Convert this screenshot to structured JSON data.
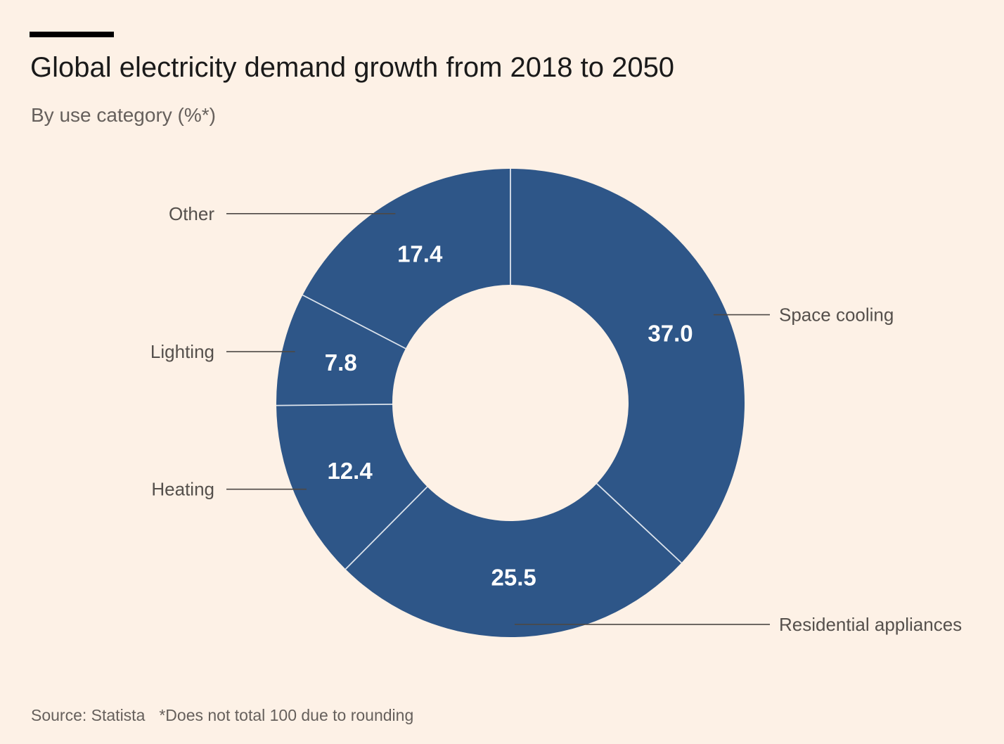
{
  "header": {
    "title": "Global electricity demand growth from 2018 to 2050",
    "subtitle": "By use category (%*)"
  },
  "footer": {
    "source": "Source: Statista",
    "note": "*Does not total 100 due to rounding"
  },
  "colors": {
    "background": "#fdf1e6",
    "slice": "#2e5688",
    "divider": "#dce3ec",
    "label_text": "#ffffff",
    "leader_line": "#4d4845",
    "category_text": "#55504c"
  },
  "chart_data": {
    "type": "pie",
    "donut": true,
    "title": "Global electricity demand growth from 2018 to 2050",
    "subtitle": "By use category (%*)",
    "start_angle_deg": 0,
    "direction": "clockwise",
    "slices": [
      {
        "name": "Space cooling",
        "value": 37.0,
        "display": "37.0"
      },
      {
        "name": "Residential appliances",
        "value": 25.5,
        "display": "25.5"
      },
      {
        "name": "Heating",
        "value": 12.4,
        "display": "12.4"
      },
      {
        "name": "Lighting",
        "value": 7.8,
        "display": "7.8"
      },
      {
        "name": "Other",
        "value": 17.4,
        "display": "17.4"
      }
    ]
  }
}
